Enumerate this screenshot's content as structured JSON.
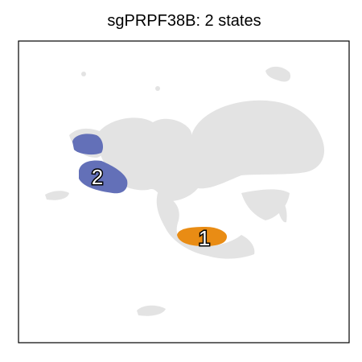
{
  "chart_data": {
    "type": "scatter",
    "title": "sgPRPF38B: 2 states",
    "xlabel": "",
    "ylabel": "",
    "grid": false,
    "legend": "none",
    "colors": {
      "background_cells": "#e3e3e3",
      "state_1": "#e98c14",
      "state_2": "#6370b8",
      "frame": "#000000"
    },
    "states": [
      {
        "label": "1",
        "color": "#e98c14"
      },
      {
        "label": "2",
        "color": "#6370b8"
      }
    ]
  }
}
